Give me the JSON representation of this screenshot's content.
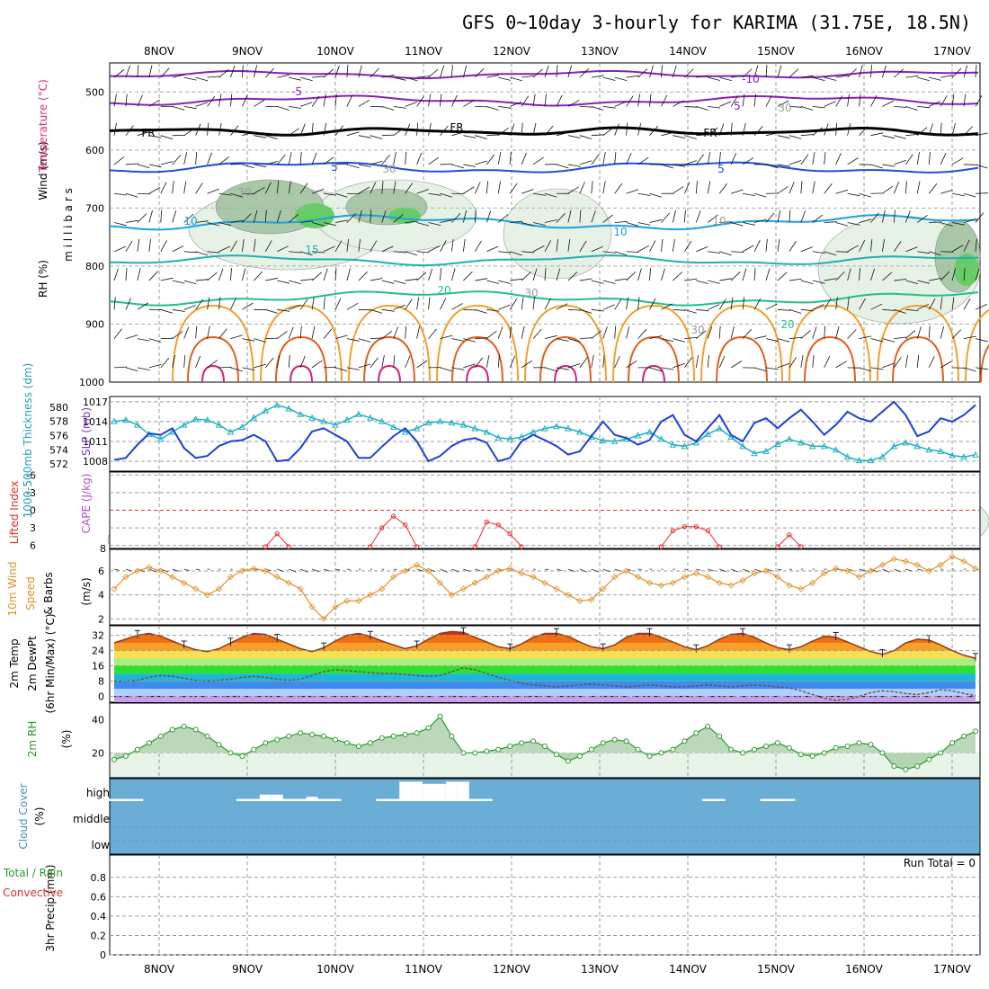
{
  "title": "GFS 0~10day 3-hourly for KARIMA (31.75E, 18.5N)",
  "dates": [
    "8NOV",
    "9NOV",
    "10NOV",
    "11NOV",
    "12NOV",
    "13NOV",
    "14NOV",
    "15NOV",
    "16NOV",
    "17NOV"
  ],
  "run_total": "Run Total = 0",
  "colors": {
    "purple": "#8a1fb5",
    "black": "#000000",
    "blue": "#1f4fd6",
    "lightblue": "#1ea0e0",
    "teal": "#20b0b0",
    "green": "#1fbf8f",
    "orange": "#f0a030",
    "red": "#e03030",
    "slp": "#1f3fd6",
    "thick": "#20b0c0",
    "wind": "#e0902a",
    "rh": "#2a9a2a",
    "cloudbg": "#6aaed6"
  },
  "chart_data": [
    {
      "type": "contour",
      "panel": "upper-air",
      "ylabel_parts": [
        "Wind (m/s)",
        "Temperature (°C)",
        "RH (%)"
      ],
      "yunit": "m i l l i b a r s",
      "yticks": [
        "500",
        "600",
        "700",
        "800",
        "900",
        "1000"
      ],
      "ylim": [
        1000,
        450
      ],
      "contour_labels": [
        "-10",
        "-5",
        "5",
        "FR",
        "FR",
        "FR",
        "5",
        "5",
        "10",
        "10",
        "15",
        "20",
        "20",
        "30",
        "30",
        "30",
        "30",
        "10",
        "30"
      ]
    },
    {
      "type": "line",
      "panel": "slp-thickness",
      "ylabel_left": "1000-500mb Thickness (dm)",
      "ylabel_right": "SLP (mb)",
      "yticks_left": [
        "580",
        "578",
        "576",
        "574",
        "572"
      ],
      "yticks_right": [
        "1017",
        "1014",
        "1011",
        "1008"
      ],
      "series": [
        {
          "name": "SLP (mb)",
          "values": [
            1008.2,
            1008.5,
            1010.5,
            1012.2,
            1012.0,
            1013.0,
            1010.0,
            1008.5,
            1008.8,
            1010.3,
            1011.0,
            1011.2,
            1012.0,
            1011.0,
            1008.0,
            1008.2,
            1010.0,
            1012.5,
            1013.0,
            1012.0,
            1011.0,
            1008.5,
            1008.5,
            1010.2,
            1011.8,
            1013.0,
            1011.0,
            1008.0,
            1008.8,
            1010.3,
            1011.2,
            1011.5,
            1010.8,
            1008.0,
            1008.5,
            1011.0,
            1012.0,
            1011.2,
            1010.3,
            1009.0,
            1009.5,
            1011.8,
            1014.0,
            1012.0,
            1011.5,
            1010.5,
            1011.2,
            1014.0,
            1015.0,
            1012.0,
            1011.0,
            1013.0,
            1015.0,
            1012.0,
            1011.0,
            1013.8,
            1014.5,
            1013.0,
            1014.5,
            1015.8,
            1014.0,
            1012.0,
            1013.5,
            1015.5,
            1014.5,
            1014.0,
            1015.5,
            1017.0,
            1015.0,
            1011.8,
            1012.5,
            1014.5,
            1014.0,
            1015.0,
            1016.5
          ]
        },
        {
          "name": "1000-500mb Thickness (dm)",
          "values": [
            578.0,
            578.2,
            577.5,
            576.2,
            575.5,
            576.5,
            577.5,
            578.3,
            578.2,
            577.5,
            576.5,
            577.2,
            578.5,
            579.5,
            580.3,
            579.8,
            579.0,
            578.5,
            578.0,
            577.5,
            578.2,
            579.0,
            578.5,
            578.0,
            577.2,
            576.5,
            577.0,
            577.8,
            578.0,
            577.8,
            577.5,
            577.0,
            576.5,
            575.7,
            575.5,
            575.8,
            576.5,
            577.0,
            577.3,
            577.0,
            576.5,
            575.8,
            575.3,
            575.2,
            575.5,
            576.0,
            576.5,
            575.5,
            574.7,
            574.5,
            575.0,
            576.2,
            577.0,
            575.8,
            574.5,
            573.5,
            573.8,
            574.8,
            575.5,
            575.0,
            574.5,
            574.5,
            574.0,
            573.0,
            572.5,
            572.5,
            573.0,
            574.5,
            575.0,
            574.5,
            574.0,
            573.8,
            573.2,
            573.0,
            573.3
          ]
        }
      ]
    },
    {
      "type": "line",
      "panel": "lifted-cape",
      "ylabel_left": "Lifted Index",
      "ylabel_right": "CAPE (J/kg)",
      "yticks_left": [
        "-6",
        "-3",
        "0",
        "3",
        "6"
      ],
      "yticks_right": [
        "8"
      ],
      "zero_line": 0,
      "segments": [
        {
          "x": [
            13,
            14,
            15
          ],
          "values": [
            6.2,
            4.0,
            6.2
          ]
        },
        {
          "x": [
            22,
            23,
            24,
            25,
            26
          ],
          "values": [
            6.2,
            3.0,
            1.0,
            2.5,
            6.2
          ]
        },
        {
          "x": [
            31,
            32,
            33,
            34,
            35
          ],
          "values": [
            6.2,
            2.0,
            2.5,
            4.0,
            6.2
          ]
        },
        {
          "x": [
            47,
            48,
            49,
            50,
            51,
            52
          ],
          "values": [
            6.2,
            3.5,
            2.8,
            2.8,
            3.5,
            6.2
          ]
        },
        {
          "x": [
            57,
            58,
            59
          ],
          "values": [
            6.2,
            4.2,
            6.2
          ]
        }
      ]
    },
    {
      "type": "line",
      "panel": "wind10m",
      "ylabel_parts": [
        "10m Wind",
        "Speed",
        "& Barbs",
        "(m/s)"
      ],
      "yticks": [
        "6",
        "4",
        "2"
      ],
      "ylim": [
        1.5,
        7.8
      ],
      "series": [
        {
          "name": "10m Wind Speed (m/s)",
          "values": [
            4.5,
            5.5,
            6.0,
            6.3,
            6.0,
            5.5,
            5.0,
            4.5,
            4.0,
            4.5,
            5.5,
            6.0,
            6.2,
            6.0,
            5.5,
            5.0,
            4.5,
            3.0,
            2.0,
            3.0,
            3.5,
            3.5,
            4.0,
            4.5,
            5.5,
            6.0,
            6.5,
            6.0,
            5.0,
            4.0,
            4.5,
            5.0,
            5.5,
            6.0,
            6.2,
            5.8,
            5.5,
            5.0,
            4.5,
            4.0,
            3.5,
            3.6,
            4.5,
            5.5,
            6.0,
            5.5,
            5.0,
            4.8,
            5.0,
            5.5,
            5.8,
            5.5,
            5.0,
            4.8,
            5.2,
            5.8,
            6.0,
            5.5,
            4.8,
            4.5,
            5.0,
            5.8,
            6.2,
            6.0,
            5.5,
            6.0,
            6.5,
            7.0,
            6.8,
            6.5,
            6.0,
            6.5,
            7.2,
            6.8,
            6.2
          ]
        }
      ]
    },
    {
      "type": "area",
      "panel": "temp-dewpoint",
      "ylabel_parts": [
        "2m Temp",
        "2m DewPt",
        "(6hr Min/Max) (°C)"
      ],
      "yticks": [
        "32",
        "24",
        "16",
        "8",
        "0"
      ],
      "ylim": [
        -3,
        37
      ],
      "series": [
        {
          "name": "2m Temp (°C)",
          "values": [
            28.0,
            30.0,
            32.0,
            33.0,
            31.5,
            29.0,
            26.5,
            24.5,
            23.5,
            25.0,
            28.0,
            31.0,
            33.0,
            32.5,
            30.0,
            27.5,
            25.0,
            23.5,
            25.5,
            29.0,
            32.0,
            33.0,
            31.5,
            29.0,
            27.0,
            25.0,
            26.5,
            30.0,
            33.0,
            34.0,
            33.5,
            31.0,
            28.5,
            26.0,
            25.0,
            27.5,
            31.0,
            33.0,
            33.0,
            31.5,
            28.5,
            26.0,
            25.0,
            27.0,
            31.0,
            33.0,
            33.0,
            31.0,
            28.5,
            26.0,
            24.5,
            26.5,
            30.0,
            32.5,
            33.0,
            31.0,
            28.0,
            25.5,
            24.5,
            26.0,
            29.0,
            31.5,
            31.0,
            28.5,
            26.0,
            23.5,
            22.0,
            24.0,
            28.0,
            30.0,
            29.5,
            27.0,
            24.0,
            21.5,
            20.0
          ]
        },
        {
          "name": "2m DewPt (°C)",
          "values": [
            8.0,
            8.0,
            8.5,
            10.0,
            11.0,
            10.5,
            9.5,
            8.5,
            8.0,
            8.5,
            9.0,
            10.0,
            10.5,
            10.0,
            9.0,
            8.5,
            9.0,
            11.0,
            13.0,
            14.0,
            13.5,
            13.0,
            12.5,
            12.0,
            12.0,
            11.5,
            11.0,
            10.5,
            11.0,
            13.0,
            15.0,
            14.0,
            12.0,
            10.0,
            8.5,
            7.0,
            6.0,
            5.5,
            5.0,
            5.5,
            6.0,
            6.5,
            6.0,
            5.5,
            5.0,
            5.5,
            6.0,
            5.5,
            5.0,
            5.0,
            5.5,
            6.0,
            5.5,
            5.0,
            5.5,
            6.0,
            5.5,
            5.0,
            4.5,
            3.0,
            1.0,
            -1.0,
            -2.0,
            -1.5,
            0.0,
            2.0,
            3.0,
            2.5,
            1.5,
            1.0,
            2.0,
            3.5,
            3.0,
            1.5,
            0.5
          ]
        }
      ]
    },
    {
      "type": "area",
      "panel": "rh2m",
      "ylabel_parts": [
        "2m RH",
        "(%)"
      ],
      "yticks": [
        "40",
        "20"
      ],
      "ylim": [
        5,
        50
      ],
      "series": [
        {
          "name": "2m RH (%)",
          "values": [
            16,
            18,
            22,
            26,
            30,
            34,
            36,
            34,
            30,
            25,
            20,
            18,
            22,
            26,
            28,
            30,
            32,
            31,
            30,
            28,
            26,
            24,
            26,
            29,
            30,
            31,
            32,
            35,
            42,
            30,
            20,
            20,
            21,
            22,
            24,
            26,
            27,
            24,
            19,
            15,
            18,
            22,
            26,
            28,
            27,
            22,
            18,
            20,
            22,
            27,
            32,
            36,
            30,
            22,
            20,
            22,
            24,
            26,
            23,
            19,
            18,
            20,
            23,
            24,
            26,
            25,
            20,
            12,
            10,
            12,
            16,
            20,
            26,
            30,
            33
          ]
        }
      ]
    },
    {
      "type": "bar",
      "panel": "cloud-cover",
      "ylabel_parts": [
        "Cloud Cover",
        "(%)"
      ],
      "levels": [
        "high",
        "middle",
        "low"
      ],
      "series": [
        {
          "name": "high (%)",
          "values": [
            10,
            10,
            10,
            0,
            0,
            0,
            0,
            0,
            0,
            0,
            0,
            10,
            10,
            30,
            30,
            10,
            10,
            20,
            10,
            10,
            0,
            0,
            0,
            10,
            10,
            90,
            90,
            80,
            80,
            90,
            90,
            10,
            10,
            0,
            0,
            0,
            0,
            0,
            0,
            0,
            0,
            0,
            0,
            0,
            0,
            0,
            0,
            0,
            0,
            0,
            0,
            10,
            10,
            0,
            0,
            0,
            10,
            10,
            10,
            0,
            0,
            0,
            0,
            0,
            0,
            0,
            0,
            0,
            0,
            0,
            0,
            0,
            0,
            0,
            0
          ]
        }
      ]
    },
    {
      "type": "bar",
      "panel": "precip",
      "ylabel_parts": [
        "3hr Precip (mm)",
        "Total / Rain",
        "Convective"
      ],
      "yticks": [
        "0.8",
        "0.6",
        "0.4",
        "0.2",
        "0"
      ],
      "ylim": [
        0,
        1
      ],
      "values": [],
      "annotation": "Run Total = 0"
    }
  ]
}
